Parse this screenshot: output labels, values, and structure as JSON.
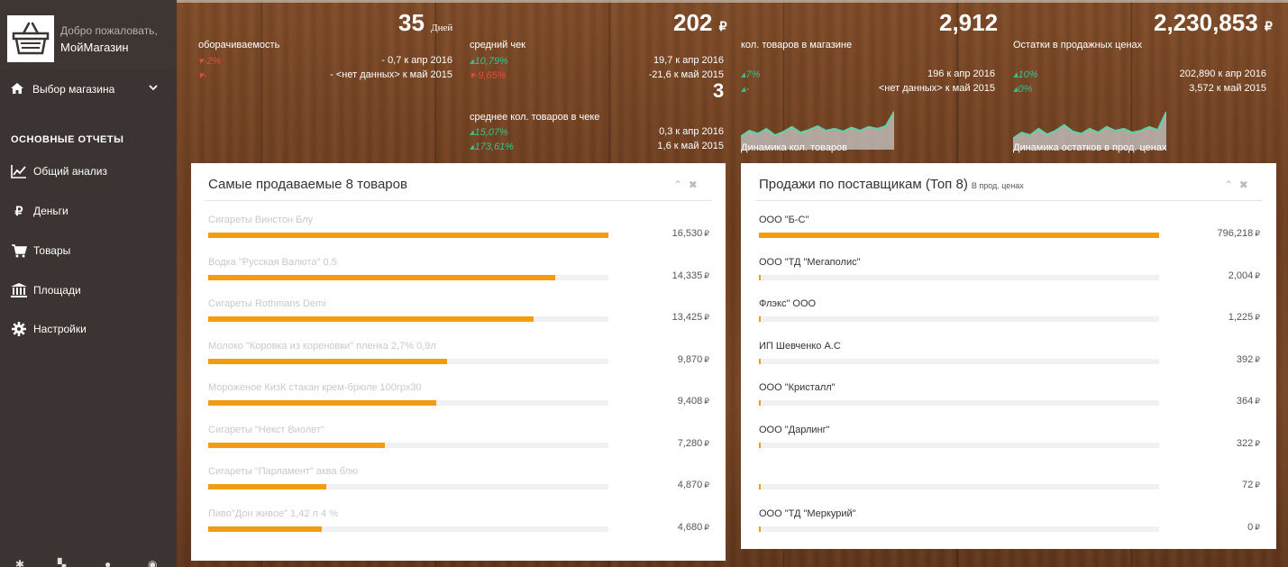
{
  "sidebar": {
    "welcome": "Добро пожаловать,",
    "shop_name": "МойМагазин",
    "store_select_label": "Выбор магазина",
    "section_heading": "ОСНОВНЫЕ ОТЧЕТЫ",
    "items": [
      {
        "label": "Общий анализ",
        "icon": "line-chart-icon"
      },
      {
        "label": "Деньги",
        "icon": "ruble-icon"
      },
      {
        "label": "Товары",
        "icon": "shopping-cart-icon"
      },
      {
        "label": "Площади",
        "icon": "bank-icon"
      },
      {
        "label": "Настройки",
        "icon": "gear-icon"
      }
    ]
  },
  "kpis": {
    "turnover": {
      "value": "35",
      "unit": "Дней",
      "title": "оборачиваемость",
      "rows": [
        {
          "delta": "-2%",
          "trend": "down",
          "text": "- 0,7 к апр 2016"
        },
        {
          "delta": "-",
          "trend": "down",
          "text": "- <нет данных> к май 2015"
        }
      ]
    },
    "avg_check": {
      "value": "202",
      "currency": "₽",
      "title": "средний чек",
      "rows": [
        {
          "delta": "10,79%",
          "trend": "up",
          "text": "19,7 к апр 2016"
        },
        {
          "delta": "-9,65%",
          "trend": "down",
          "text": "-21,6 к май 2015"
        }
      ]
    },
    "avg_items": {
      "value": "3",
      "title": "среднее кол. товаров в чеке",
      "rows": [
        {
          "delta": "15,07%",
          "trend": "up",
          "text": "0,3 к апр 2016"
        },
        {
          "delta": "173,61%",
          "trend": "up",
          "text": "1,6 к май 2015"
        }
      ]
    },
    "items_in_store": {
      "value": "2,912",
      "title": "кол. товаров в магазине",
      "rows": [
        {
          "delta": "7%",
          "trend": "up",
          "text": "196 к апр 2016"
        },
        {
          "delta": "-",
          "trend": "up",
          "text": "<нет данных> к май 2015"
        }
      ],
      "spark_caption": "Динамика кол. товаров",
      "spark": [
        0.35,
        0.5,
        0.42,
        0.55,
        0.38,
        0.47,
        0.6,
        0.45,
        0.52,
        0.62,
        0.5,
        0.55,
        0.48,
        0.58,
        0.5,
        0.6,
        0.55,
        0.62,
        1.0
      ]
    },
    "stock_value": {
      "value": "2,230,853",
      "currency": "₽",
      "title": "Остатки в продажных ценах",
      "rows": [
        {
          "delta": "10%",
          "trend": "up",
          "text": "202,890 к апр 2016"
        },
        {
          "delta": "0%",
          "trend": "up",
          "text": "3,572 к май 2015"
        }
      ],
      "spark_caption": "Динамика остатков в прод. ценах",
      "spark": [
        0.3,
        0.45,
        0.38,
        0.55,
        0.4,
        0.5,
        0.65,
        0.48,
        0.42,
        0.55,
        0.45,
        0.6,
        0.5,
        0.55,
        0.45,
        0.5,
        0.6,
        0.52,
        1.0
      ]
    }
  },
  "top_products": {
    "title": "Самые продаваемые 8 товаров",
    "max": 16530,
    "items": [
      {
        "name": "Сигареты Винстон Блу",
        "value": 16530,
        "label": "16,530"
      },
      {
        "name": "Водка \"Русская Валюта\" 0.5",
        "value": 14335,
        "label": "14,335"
      },
      {
        "name": "Сигареты Rothmans Demi",
        "value": 13425,
        "label": "13,425"
      },
      {
        "name": "Молоко \"Коровка из кореновки\" пленка 2,7% 0,9л",
        "value": 9870,
        "label": "9,870"
      },
      {
        "name": "Мороженое КизК стакан крем-брюле 100грх30",
        "value": 9408,
        "label": "9,408"
      },
      {
        "name": "Сигареты \"Некст Виолет\"",
        "value": 7280,
        "label": "7,280"
      },
      {
        "name": "Сигареты \"Парламент\" аква блю",
        "value": 4870,
        "label": "4,870"
      },
      {
        "name": "Пиво\"Дон живое\" 1,42 л 4 %",
        "value": 4680,
        "label": "4,680"
      }
    ]
  },
  "suppliers": {
    "title": "Продажи по поставщикам (Топ 8)",
    "subtitle": "В прод. ценах",
    "max": 796218,
    "items": [
      {
        "name": "ООО \"Б-С\"",
        "value": 796218,
        "label": "796,218"
      },
      {
        "name": "ООО \"ТД \"Мегаполис\"",
        "value": 2004,
        "label": "2,004"
      },
      {
        "name": "Флэкс\" ООО",
        "value": 1225,
        "label": "1,225"
      },
      {
        "name": "ИП Шевченко А.С",
        "value": 392,
        "label": "392"
      },
      {
        "name": "ООО \"Кристалл\"",
        "value": 364,
        "label": "364"
      },
      {
        "name": "ООО \"Дарлинг\"",
        "value": 322,
        "label": "322"
      },
      {
        "name": "",
        "value": 72,
        "label": "72"
      },
      {
        "name": "ООО \"ТД \"Меркурий\"",
        "value": 0,
        "label": "0"
      }
    ]
  },
  "currency_symbol": "₽",
  "colors": {
    "bar": "#f39c12",
    "up": "#35c28e",
    "down": "#e74c3c",
    "sidebar": "#3b3432"
  }
}
